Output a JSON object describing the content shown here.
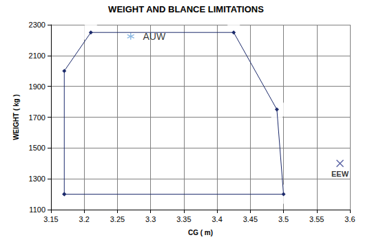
{
  "chart_data": {
    "type": "line",
    "title": "WEIGHT AND BLANCE LIMITATIONS",
    "x_label": "CG ( m)",
    "y_label": "WEIGHT ( kg )",
    "xlim": [
      3.15,
      3.6
    ],
    "xticks": [
      3.15,
      3.2,
      3.25,
      3.3,
      3.35,
      3.4,
      3.45,
      3.5,
      3.55,
      3.6
    ],
    "ylim": [
      1100,
      2300
    ],
    "yticks": [
      1100,
      1300,
      1500,
      1700,
      1900,
      2100,
      2300
    ],
    "grid": true,
    "series": [
      {
        "type": "line",
        "color": "#1c2a6b",
        "marker": "diamond",
        "x": [
          3.17,
          3.17,
          3.21,
          3.425,
          3.49,
          3.5,
          3.17
        ],
        "values": [
          1200,
          2000,
          2250,
          2250,
          1750,
          1200,
          1200
        ]
      },
      {
        "type": "scatter",
        "color": "#e8302a",
        "marker": "emptyCircle",
        "x": [
          3.17,
          3.17,
          3.21,
          3.425,
          3.49,
          3.5
        ],
        "values": [
          1200,
          2000,
          2250,
          2250,
          1750,
          1200
        ]
      },
      {
        "type": "scatter",
        "name": "AUW",
        "color": "#6fa8dc",
        "marker": "star",
        "x": [
          3.27
        ],
        "values": [
          2225
        ]
      },
      {
        "type": "scatter",
        "name": "EEW",
        "color": "#2e3a8c",
        "marker": "x",
        "x": [
          3.585
        ],
        "values": [
          1400
        ]
      }
    ]
  }
}
